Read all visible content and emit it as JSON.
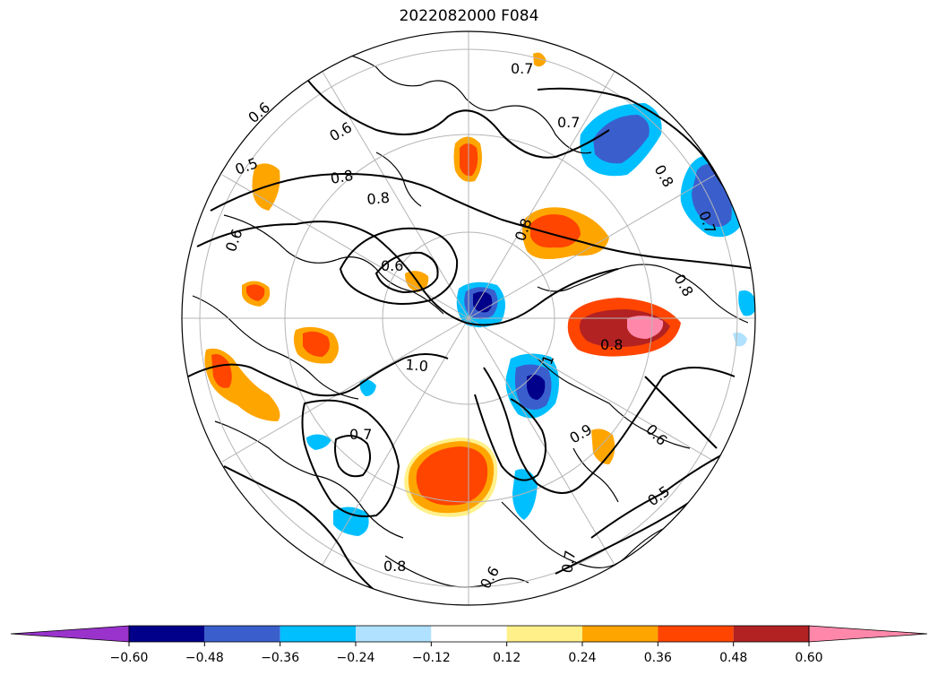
{
  "title": "2022082000 F084",
  "map": {
    "projection": "north-polar-stereographic",
    "grid": true,
    "contour_color": "#000000",
    "contour_labels": [
      "0.6",
      "0.5",
      "0.6",
      "0.8",
      "0.8",
      "0.7",
      "0.7",
      "0.8",
      "0.8",
      "0.6",
      "0.7",
      "1.0",
      "0.7",
      "0.9",
      "0.6",
      "0.5",
      "0.8",
      "0.6",
      "0.8",
      "1",
      "0.8",
      "0.7",
      "0.6"
    ]
  },
  "colorbar": {
    "extend": "both",
    "colors": [
      "#9933cc",
      "#00008b",
      "#3a5fcd",
      "#00bfff",
      "#b0e2ff",
      "#ffffff",
      "#fff08a",
      "#ffa500",
      "#ff4500",
      "#b22222",
      "#ff88aa"
    ],
    "tick_labels": [
      "−0.60",
      "−0.48",
      "−0.36",
      "−0.24",
      "−0.12",
      "0.12",
      "0.24",
      "0.36",
      "0.48",
      "0.60"
    ]
  }
}
